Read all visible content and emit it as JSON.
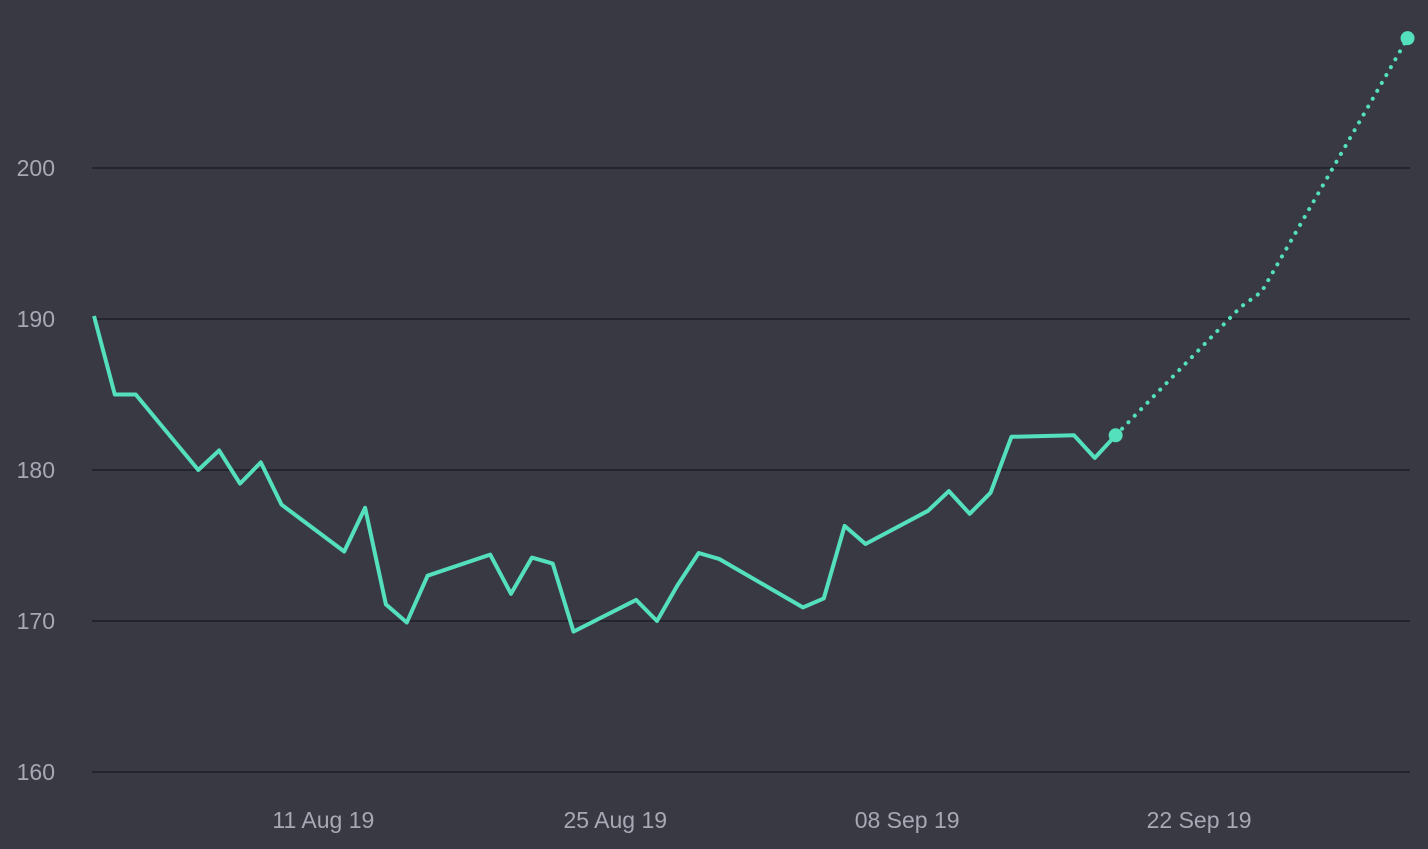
{
  "theme": {
    "background": "#393944",
    "gridline": "#24242c",
    "line": "#54e0bd",
    "tick_label": "#a7a8b4"
  },
  "chart_data": {
    "type": "line",
    "title": "",
    "xlabel": "",
    "ylabel": "",
    "ylim": [
      160,
      209
    ],
    "grid": "horizontal",
    "legend": "none",
    "y_ticks": [
      "160",
      "170",
      "180",
      "190",
      "200"
    ],
    "x_ticks": [
      {
        "date": "2019-08-11",
        "label": "11 Aug 19"
      },
      {
        "date": "2019-08-25",
        "label": "25 Aug 19"
      },
      {
        "date": "2019-09-08",
        "label": "08 Sep 19"
      },
      {
        "date": "2019-09-22",
        "label": "22 Sep 19"
      }
    ],
    "series": [
      {
        "style": "solid",
        "points": [
          {
            "x": "2019-07-31",
            "y": 190.2
          },
          {
            "x": "2019-08-01",
            "y": 185.0
          },
          {
            "x": "2019-08-02",
            "y": 185.0
          },
          {
            "x": "2019-08-05",
            "y": 180.0
          },
          {
            "x": "2019-08-06",
            "y": 181.3
          },
          {
            "x": "2019-08-07",
            "y": 179.1
          },
          {
            "x": "2019-08-08",
            "y": 180.5
          },
          {
            "x": "2019-08-09",
            "y": 177.7
          },
          {
            "x": "2019-08-12",
            "y": 174.6
          },
          {
            "x": "2019-08-13",
            "y": 177.5
          },
          {
            "x": "2019-08-14",
            "y": 171.1
          },
          {
            "x": "2019-08-15",
            "y": 169.9
          },
          {
            "x": "2019-08-16",
            "y": 173.0
          },
          {
            "x": "2019-08-19",
            "y": 174.4
          },
          {
            "x": "2019-08-20",
            "y": 171.8
          },
          {
            "x": "2019-08-21",
            "y": 174.2
          },
          {
            "x": "2019-08-22",
            "y": 173.8
          },
          {
            "x": "2019-08-23",
            "y": 169.3
          },
          {
            "x": "2019-08-26",
            "y": 171.4
          },
          {
            "x": "2019-08-27",
            "y": 170.0
          },
          {
            "x": "2019-08-28",
            "y": 172.4
          },
          {
            "x": "2019-08-29",
            "y": 174.5
          },
          {
            "x": "2019-08-30",
            "y": 174.1
          },
          {
            "x": "2019-09-03",
            "y": 170.9
          },
          {
            "x": "2019-09-04",
            "y": 171.5
          },
          {
            "x": "2019-09-05",
            "y": 176.3
          },
          {
            "x": "2019-09-06",
            "y": 175.1
          },
          {
            "x": "2019-09-09",
            "y": 177.3
          },
          {
            "x": "2019-09-10",
            "y": 178.6
          },
          {
            "x": "2019-09-11",
            "y": 177.1
          },
          {
            "x": "2019-09-12",
            "y": 178.5
          },
          {
            "x": "2019-09-13",
            "y": 182.2
          },
          {
            "x": "2019-09-16",
            "y": 182.3
          },
          {
            "x": "2019-09-17",
            "y": 180.8
          },
          {
            "x": "2019-09-18",
            "y": 182.3
          }
        ]
      },
      {
        "style": "dotted",
        "points": [
          {
            "x": "2019-09-18",
            "y": 182.3
          },
          {
            "x": "2019-09-24",
            "y": 190.8
          },
          {
            "x": "2019-09-25",
            "y": 191.8
          },
          {
            "x": "2019-10-02",
            "y": 208.6
          }
        ]
      }
    ]
  }
}
